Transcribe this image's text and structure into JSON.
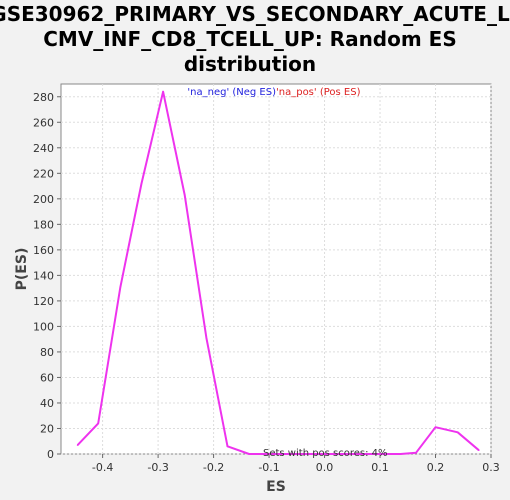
{
  "chart_data": {
    "type": "line",
    "title_lines": [
      "GSE30962_PRIMARY_VS_SECONDARY_ACUTE_L",
      "CMV_INF_CD8_TCELL_UP: Random ES",
      "distribution"
    ],
    "xlabel": "ES",
    "ylabel": "P(ES)",
    "xlim": [
      -0.475,
      0.3
    ],
    "ylim": [
      0,
      290
    ],
    "x_ticks": [
      -0.4,
      -0.3,
      -0.2,
      -0.1,
      0.0,
      0.1,
      0.2,
      0.3
    ],
    "x_tick_labels": [
      "-0.4",
      "-0.3",
      "-0.2",
      "-0.1",
      "0.0",
      "0.1",
      "0.2",
      "0.3"
    ],
    "y_ticks": [
      0,
      20,
      40,
      60,
      80,
      100,
      120,
      140,
      160,
      180,
      200,
      220,
      240,
      260,
      280
    ],
    "y_tick_labels": [
      "0",
      "20",
      "40",
      "60",
      "80",
      "100",
      "120",
      "140",
      "160",
      "180",
      "200",
      "220",
      "240",
      "260",
      "280"
    ],
    "grid": true,
    "series": [
      {
        "color": "#ee33ee",
        "x": [
          -0.445,
          -0.408,
          -0.368,
          -0.33,
          -0.291,
          -0.252,
          -0.213,
          -0.175,
          -0.136,
          -0.097,
          -0.058,
          -0.019,
          0.02,
          0.059,
          0.098,
          0.137,
          0.165,
          0.2,
          0.24,
          0.278
        ],
        "y": [
          7,
          24,
          131,
          212,
          284,
          203,
          91,
          6,
          0,
          0,
          0,
          0,
          0,
          0,
          0,
          0,
          1,
          21,
          17,
          3
        ]
      }
    ],
    "legend": {
      "neg_label": "'na_neg' (Neg ES)",
      "pos_label": "'na_pos' (Pos ES)",
      "neg_color": "#2222dd",
      "pos_color": "#dd2222"
    },
    "annotation": "Sets with pos scores: 4%"
  }
}
